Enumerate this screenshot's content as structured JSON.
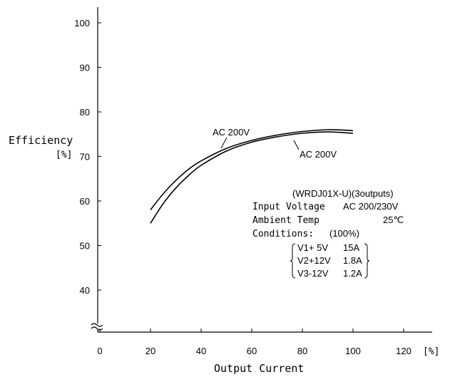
{
  "chart_data": {
    "type": "line",
    "title": "",
    "xlabel": "Output Current",
    "xunit": "[%]",
    "ylabel": "Efficiency",
    "yunit": "[%]",
    "xlim": [
      0,
      120
    ],
    "ylim": [
      30,
      100
    ],
    "x_ticks": [
      0,
      20,
      40,
      60,
      80,
      100,
      120
    ],
    "y_ticks": [
      40,
      50,
      60,
      70,
      80,
      90,
      100
    ],
    "grid": false,
    "axis_break": true,
    "series": [
      {
        "name": "AC 200V",
        "x": [
          20,
          25,
          30,
          35,
          40,
          50,
          60,
          70,
          80,
          90,
          100
        ],
        "y": [
          58,
          61.6,
          64.6,
          67.1,
          69,
          71.8,
          73.6,
          74.8,
          75.6,
          76.0,
          75.8
        ]
      },
      {
        "name": "AC 200V",
        "x": [
          20,
          25,
          30,
          35,
          40,
          50,
          60,
          70,
          80,
          90,
          100
        ],
        "y": [
          55,
          59.4,
          62.9,
          65.7,
          68,
          71.2,
          73.2,
          74.4,
          75.2,
          75.5,
          75.2
        ]
      }
    ],
    "annotations": {
      "model": "(WRDJ01X-U)(3outputs)",
      "input_voltage_label": "Input Voltage",
      "input_voltage_value": "AC 200/230V",
      "ambient_label": "Ambient Temp",
      "ambient_value": "25℃",
      "conditions_label": "Conditions:",
      "conditions_value": "(100%)",
      "outputs": [
        {
          "name": "V1+ 5V",
          "current": "15A"
        },
        {
          "name": "V2+12V",
          "current": "1.8A"
        },
        {
          "name": "V3-12V",
          "current": "1.2A"
        }
      ]
    }
  }
}
